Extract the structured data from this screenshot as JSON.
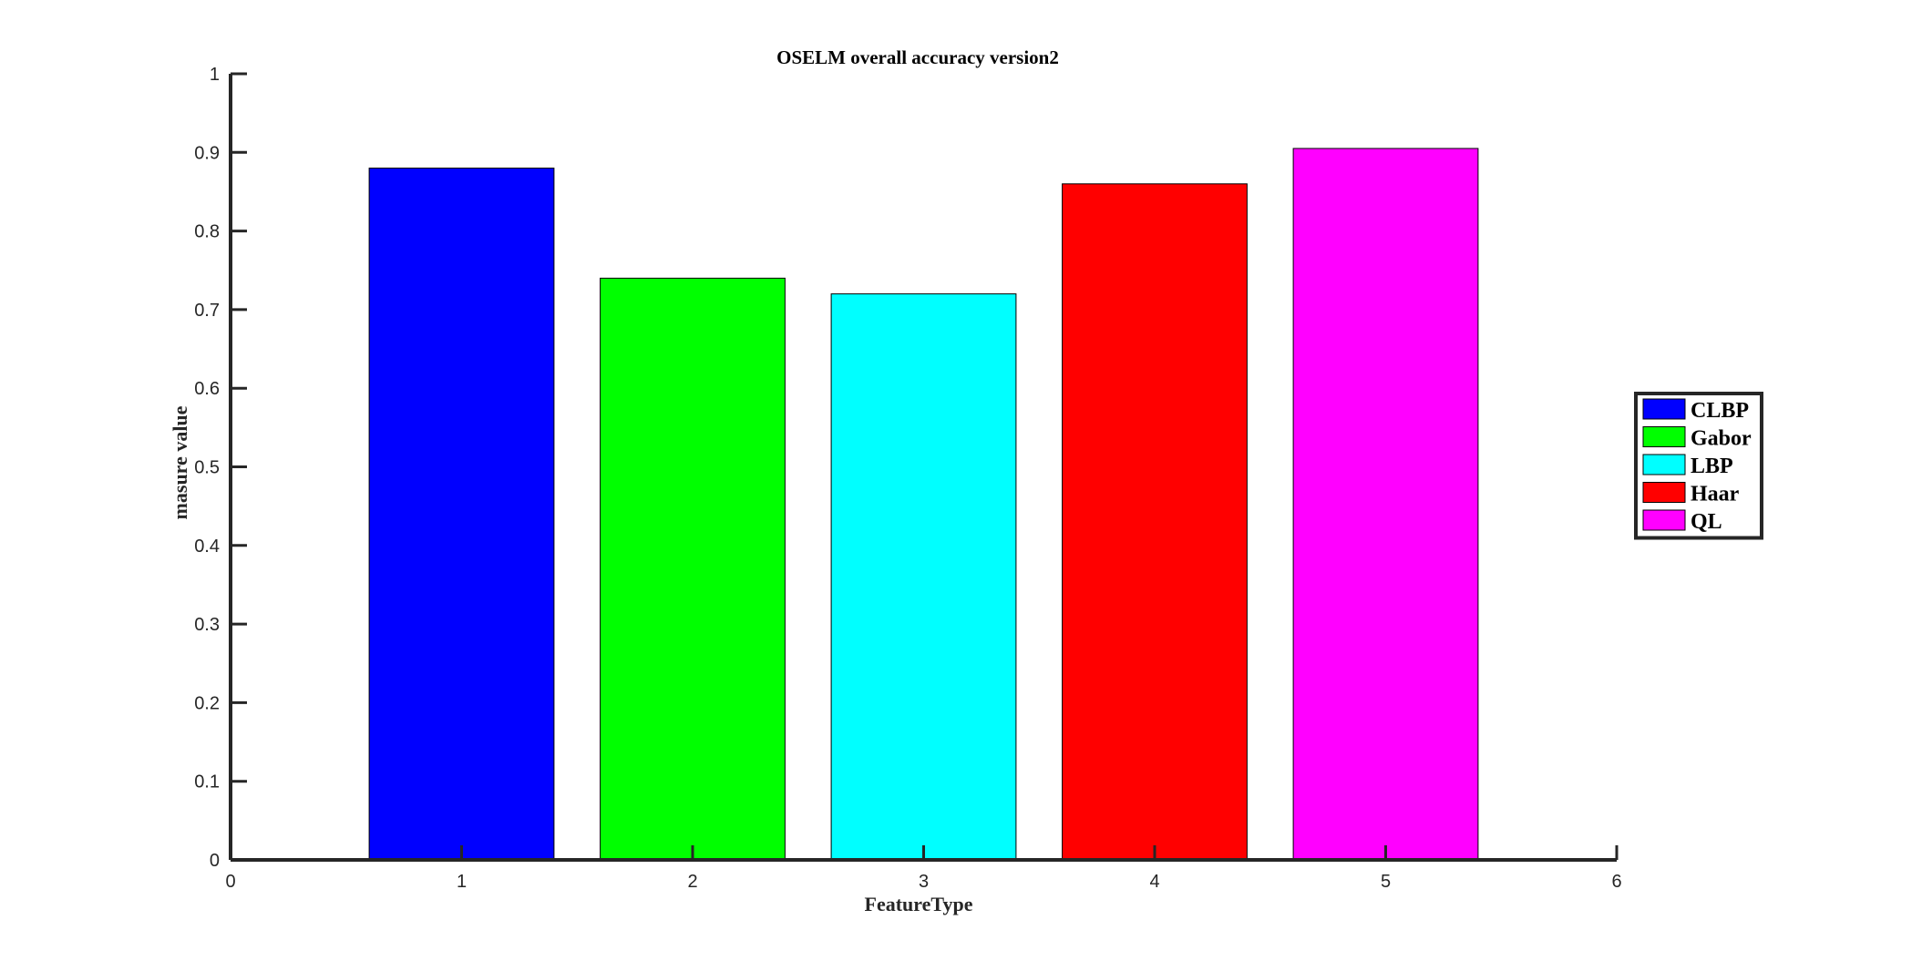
{
  "chart_data": {
    "type": "bar",
    "title": "OSELM overall accuracy version2",
    "xlabel": "FeatureType",
    "ylabel": "masure value",
    "xlim": [
      0,
      6
    ],
    "ylim": [
      0,
      1
    ],
    "x_ticks": [
      "0",
      "1",
      "2",
      "3",
      "4",
      "5",
      "6"
    ],
    "y_ticks": [
      "0",
      "0.1",
      "0.2",
      "0.3",
      "0.4",
      "0.5",
      "0.6",
      "0.7",
      "0.8",
      "0.9",
      "1"
    ],
    "grid": false,
    "legend_position": "right",
    "series": [
      {
        "name": "CLBP",
        "x": 1,
        "value": 0.88,
        "color": "#0000ff"
      },
      {
        "name": "Gabor",
        "x": 2,
        "value": 0.74,
        "color": "#00ff00"
      },
      {
        "name": "LBP",
        "x": 3,
        "value": 0.72,
        "color": "#00ffff"
      },
      {
        "name": "Haar",
        "x": 4,
        "value": 0.86,
        "color": "#ff0000"
      },
      {
        "name": "QL",
        "x": 5,
        "value": 0.905,
        "color": "#ff00ff"
      }
    ]
  }
}
